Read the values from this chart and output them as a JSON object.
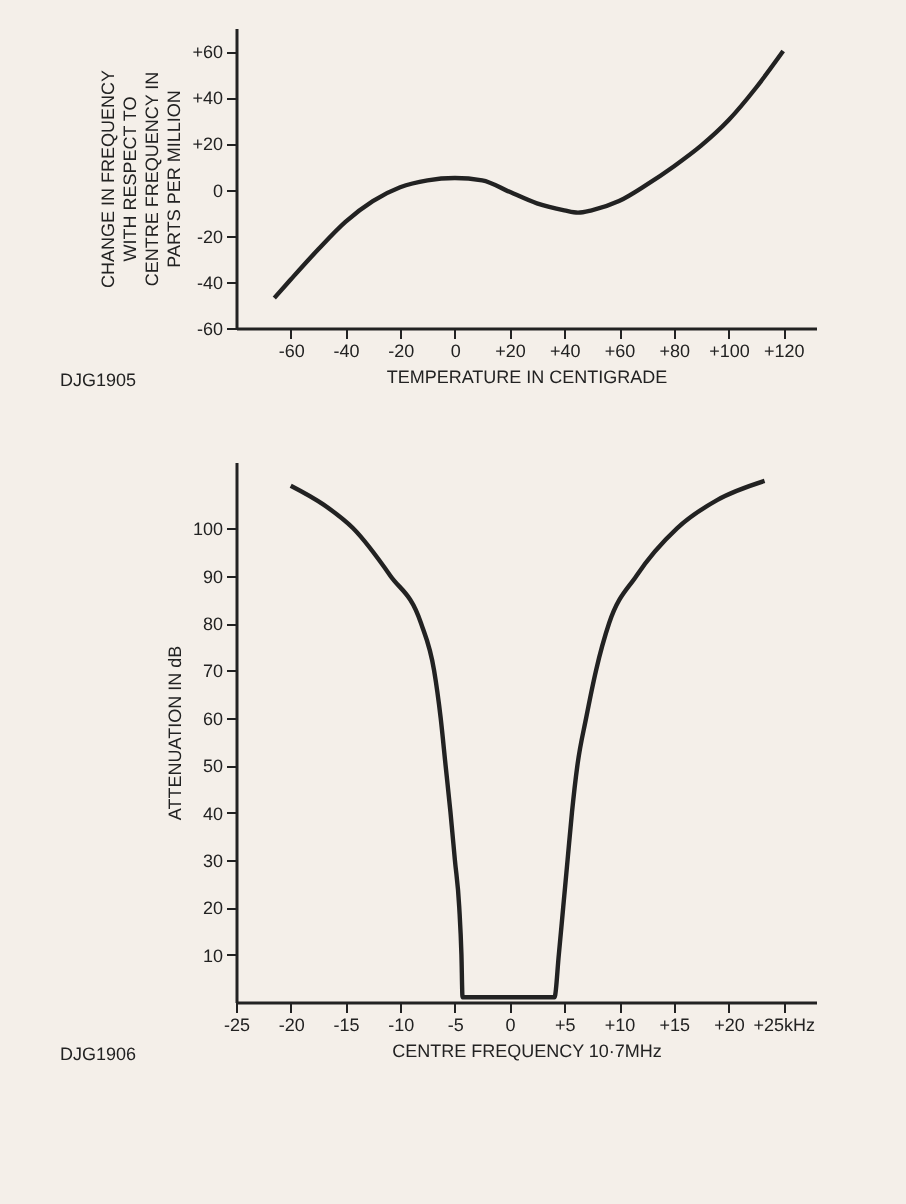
{
  "chart_data": [
    {
      "type": "line",
      "xlabel": "TEMPERATURE IN CENTIGRADE",
      "ylabel": "CHANGE IN FREQUENCY WITH RESPECT TO CENTRE FREQUENCY IN PARTS PER MILLION",
      "annotations": [
        "DJG1905"
      ],
      "grid": false,
      "x": [
        -66,
        -60,
        -50,
        -40,
        -30,
        -20,
        -10,
        0,
        10,
        20,
        30,
        40,
        45,
        50,
        60,
        70,
        80,
        90,
        100,
        110,
        120
      ],
      "series": [
        {
          "color": "#222222",
          "values": [
            -47,
            -39,
            -26,
            -14,
            -5,
            1,
            4,
            5,
            4,
            -1,
            -6,
            -9,
            -10,
            -9,
            -5,
            2,
            10,
            19,
            30,
            44,
            60
          ]
        }
      ],
      "xlim": [
        -80,
        132
      ],
      "ylim": [
        -60,
        70
      ],
      "xticks": [
        {
          "value": -60,
          "label": "-60"
        },
        {
          "value": -40,
          "label": "-40"
        },
        {
          "value": -20,
          "label": "-20"
        },
        0,
        {
          "value": 20,
          "label": "+20"
        },
        {
          "value": 40,
          "label": "+40"
        },
        {
          "value": 60,
          "label": "+60"
        },
        {
          "value": 80,
          "label": "+80"
        },
        {
          "value": 100,
          "label": "+100"
        },
        {
          "value": 120,
          "label": "+120"
        }
      ],
      "yticks": [
        -60,
        -40,
        -20,
        0,
        {
          "value": 20,
          "label": "+20"
        },
        {
          "value": 40,
          "label": "+40"
        },
        {
          "value": 60,
          "label": "+60"
        }
      ]
    },
    {
      "type": "line",
      "xlabel": "CENTRE FREQUENCY 10·7MHz",
      "ylabel": "ATTENUATION IN dB",
      "annotations": [
        "DJG1906"
      ],
      "grid": false,
      "x": [
        -20,
        -17,
        -14.3,
        -10.9,
        -8.1,
        -6.9,
        -6.3,
        -5.85,
        -5.4,
        -5,
        -4.6,
        -4.4,
        -4.3,
        4.1,
        4.5,
        4.9,
        5.3,
        5.7,
        6.2,
        7,
        7.9,
        9.1,
        11.6,
        15.3,
        19,
        23.3
      ],
      "series": [
        {
          "color": "#222222",
          "values": [
            109,
            105,
            100,
            90,
            80,
            70,
            60,
            50,
            40,
            30,
            20,
            10,
            1,
            1,
            10,
            20,
            30,
            40,
            50,
            60,
            70,
            80,
            90,
            100,
            106,
            110
          ]
        }
      ],
      "xlim": [
        -25,
        28
      ],
      "ylim": [
        0,
        114
      ],
      "xticks": [
        -25,
        -20,
        -15,
        -10,
        -5,
        0,
        {
          "value": 5,
          "label": "+5"
        },
        {
          "value": 10,
          "label": "+10"
        },
        {
          "value": 15,
          "label": "+15"
        },
        {
          "value": 20,
          "label": "+20"
        },
        {
          "value": 25,
          "label": "+25kHz"
        }
      ],
      "yticks": [
        10,
        20,
        30,
        40,
        50,
        60,
        70,
        80,
        90,
        100
      ]
    }
  ]
}
